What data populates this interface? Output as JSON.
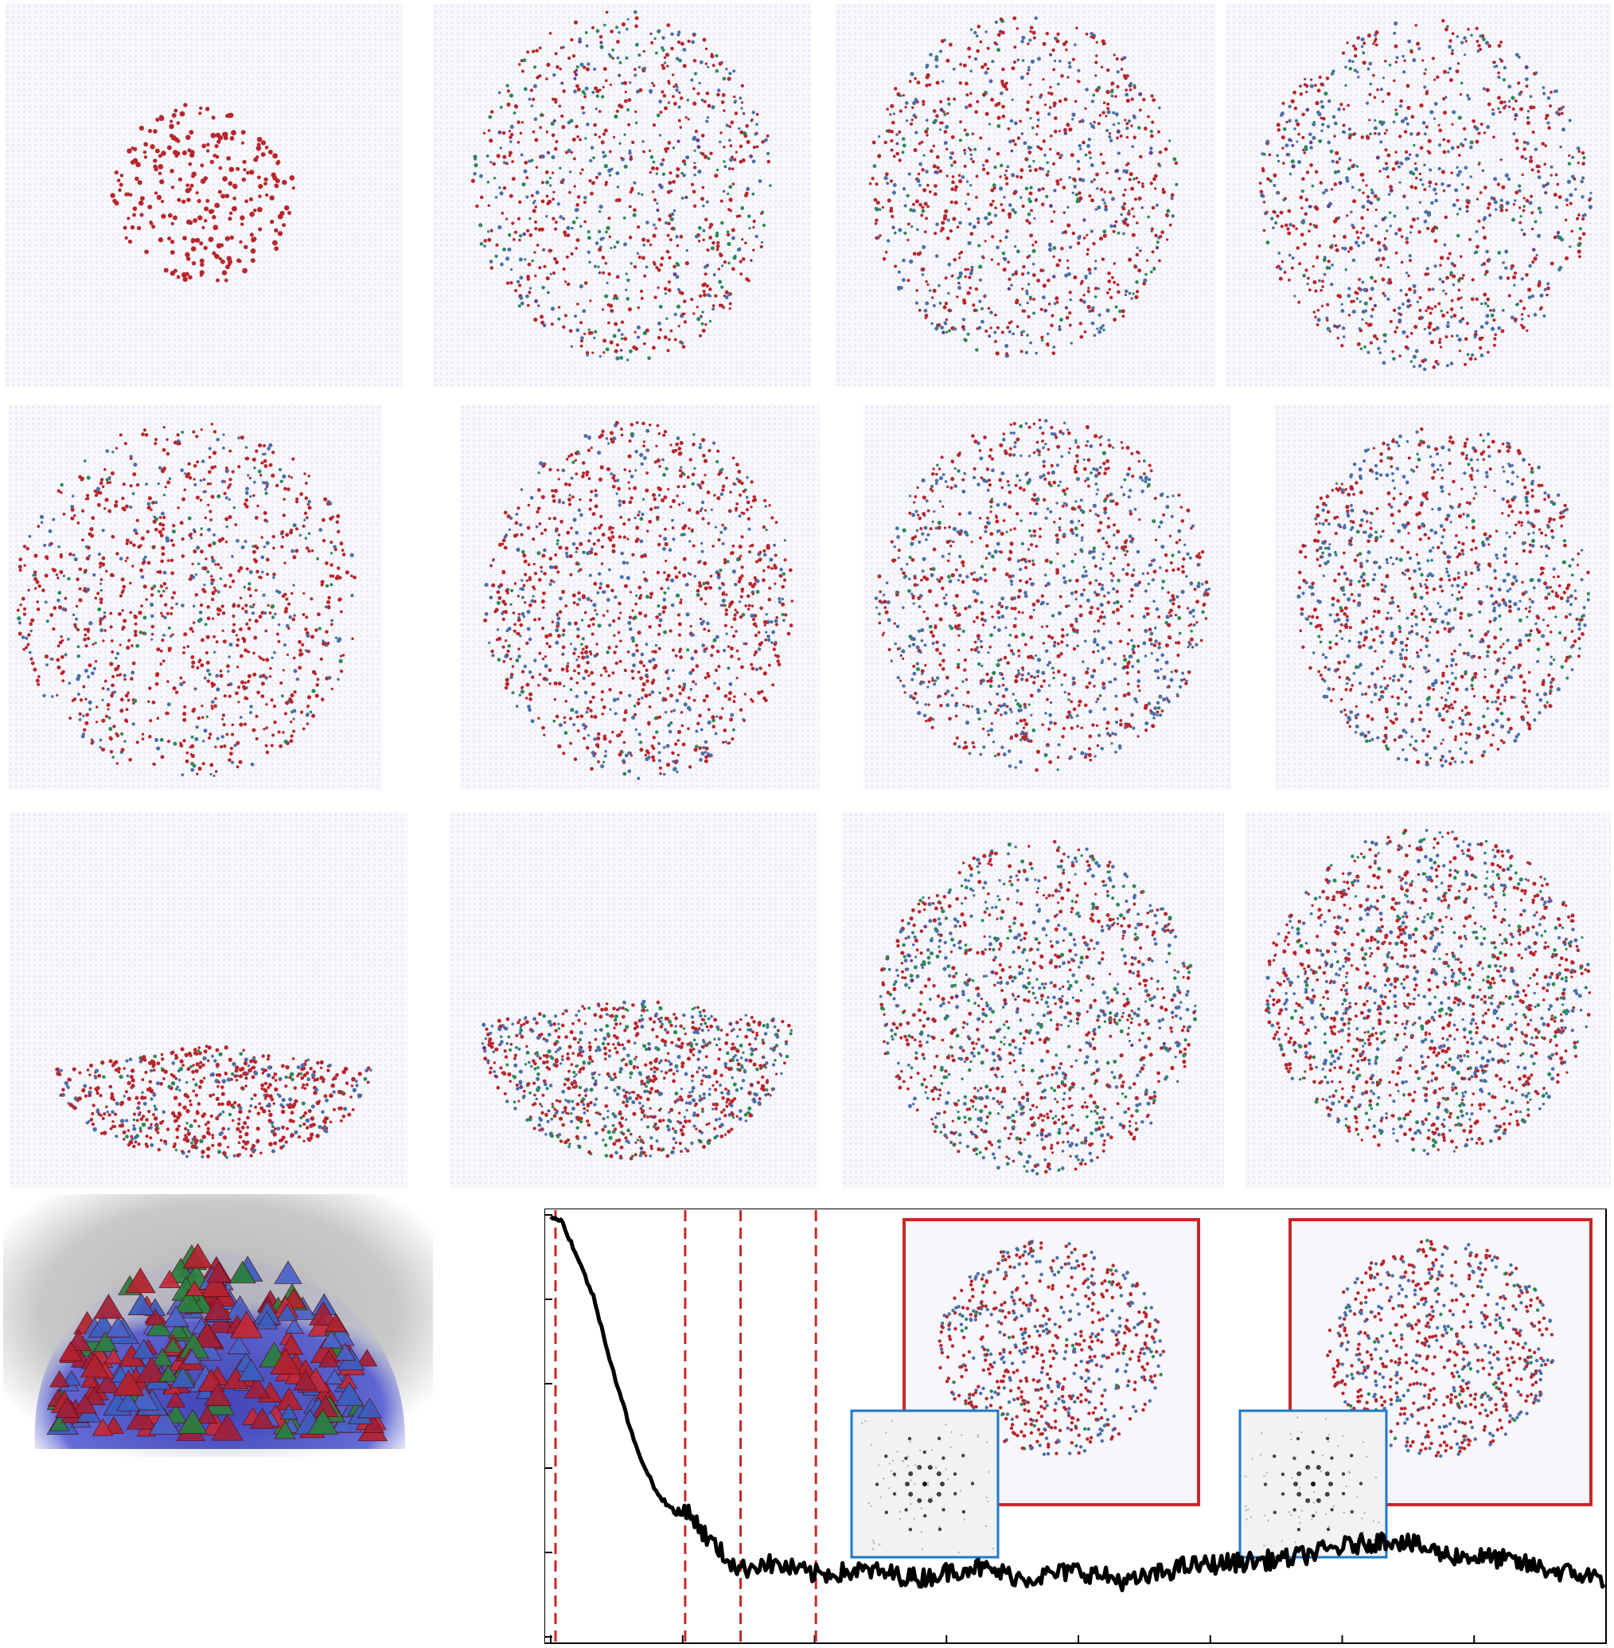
{
  "colors": {
    "red_atoms": "#b8262b",
    "blue_atoms": "#4a6fa8",
    "green_atoms": "#2a8a55",
    "purple_atoms": "#6a3d8f",
    "liquid_background": "#e6e7f4",
    "guide_lines": "#c62828",
    "inset_frame_red": "#c62828",
    "inset_frame_blue": "#1f78c8",
    "curve": "#000000"
  },
  "snapshot_grid": {
    "rows": 3,
    "columns": 4,
    "count": 12
  },
  "hero_render": {
    "description_icon": "polyhedral-cluster-render"
  },
  "chart_data": {
    "type": "line",
    "title": "",
    "xlabel": "",
    "ylabel": "",
    "axis_tick_labels_visible": false,
    "grid": false,
    "x_tick_count": 9,
    "y_tick_count": 6,
    "guide_lines_dashed": true,
    "guide_line_count": 4,
    "guide_line_x_fraction": [
      0.0,
      0.124,
      0.177,
      0.249
    ],
    "series": [
      {
        "x": [
          0.0,
          0.01,
          0.02,
          0.04,
          0.06,
          0.08,
          0.1,
          0.12,
          0.13,
          0.14,
          0.16,
          0.18,
          0.2,
          0.22,
          0.25,
          0.3,
          0.35,
          0.4,
          0.45,
          0.5,
          0.55,
          0.6,
          0.65,
          0.7,
          0.75,
          0.8,
          0.85,
          0.9,
          0.95,
          1.0
        ],
        "y": [
          1.0,
          0.99,
          0.93,
          0.8,
          0.6,
          0.42,
          0.3,
          0.24,
          0.26,
          0.21,
          0.15,
          0.1,
          0.12,
          0.11,
          0.09,
          0.1,
          0.08,
          0.11,
          0.08,
          0.1,
          0.07,
          0.11,
          0.12,
          0.13,
          0.16,
          0.18,
          0.14,
          0.13,
          0.1,
          0.08
        ]
      }
    ],
    "insets": [
      {
        "frame": "red",
        "content": "cluster-snapshot"
      },
      {
        "frame": "blue",
        "content": "diffraction-pattern"
      },
      {
        "frame": "red",
        "content": "cluster-snapshot"
      },
      {
        "frame": "blue",
        "content": "diffraction-pattern"
      }
    ]
  }
}
